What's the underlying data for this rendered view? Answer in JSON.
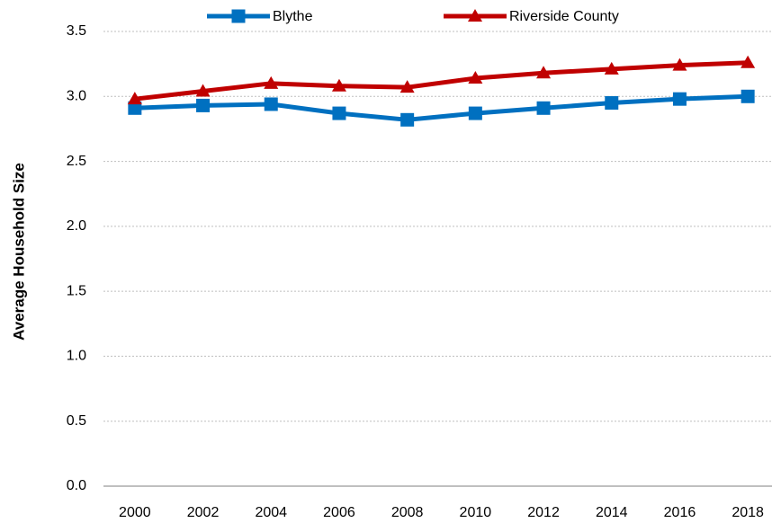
{
  "chart_data": {
    "type": "line",
    "y_label": "Average Household Size",
    "categories": [
      "2000",
      "2002",
      "2004",
      "2006",
      "2008",
      "2010",
      "2012",
      "2014",
      "2016",
      "2018"
    ],
    "series": [
      {
        "name": "Blythe",
        "color": "#0070c0",
        "marker": "square",
        "values": [
          2.91,
          2.93,
          2.94,
          2.87,
          2.82,
          2.87,
          2.91,
          2.95,
          2.98,
          3.0
        ]
      },
      {
        "name": "Riverside County",
        "color": "#c00000",
        "marker": "triangle",
        "values": [
          2.98,
          3.04,
          3.1,
          3.08,
          3.07,
          3.14,
          3.18,
          3.21,
          3.24,
          3.26
        ]
      }
    ],
    "ylim": [
      0,
      3.5
    ],
    "yticks": [
      {
        "value": 0,
        "label": "0.0"
      },
      0.5,
      {
        "value": 1,
        "label": "1.0"
      },
      1.5,
      {
        "value": 2,
        "label": "2.0"
      },
      2.5,
      {
        "value": 3,
        "label": "3.0"
      },
      3.5
    ],
    "grid": true,
    "legend": "top"
  }
}
